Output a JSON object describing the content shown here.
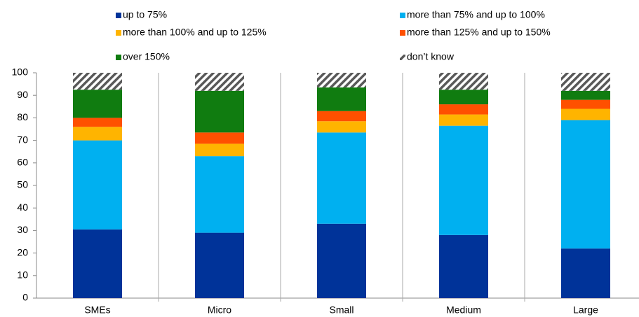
{
  "chart_data": {
    "type": "stacked_bar",
    "categories": [
      "SMEs",
      "Micro",
      "Small",
      "Medium",
      "Large"
    ],
    "series": [
      {
        "name": "up to 75%",
        "color": "#003399",
        "values": [
          30.5,
          29,
          33,
          28,
          22
        ]
      },
      {
        "name": "more than 75% and up to 100%",
        "color": "#00b0f0",
        "values": [
          39.5,
          34,
          40.5,
          48.5,
          57
        ]
      },
      {
        "name": "more than 100% and up to 125%",
        "color": "#ffb400",
        "values": [
          6,
          5.5,
          5,
          5,
          5
        ]
      },
      {
        "name": "more than 125% and up to 150%",
        "color": "#ff5000",
        "values": [
          4,
          5,
          4.5,
          4.5,
          4
        ]
      },
      {
        "name": "over 150%",
        "color": "#107c10",
        "values": [
          12.5,
          18.5,
          10.5,
          6.5,
          4
        ]
      },
      {
        "name": "don’t know",
        "color": "#595959",
        "pattern": "diagonal",
        "values": [
          7.5,
          8,
          6.5,
          7.5,
          8
        ]
      }
    ],
    "ylim": [
      0,
      100
    ],
    "yticks": [
      0,
      10,
      20,
      30,
      40,
      50,
      60,
      70,
      80,
      90,
      100
    ],
    "grid": false
  }
}
